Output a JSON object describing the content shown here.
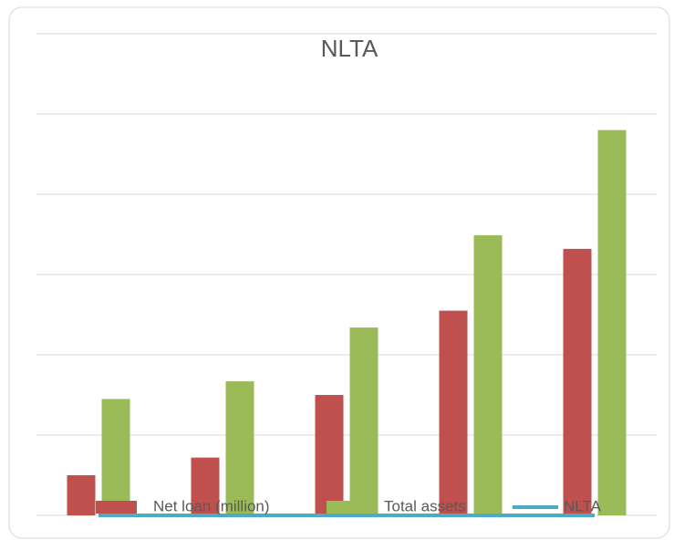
{
  "chart_data": {
    "type": "bar",
    "title": "NLTA",
    "categories": [
      null,
      null,
      null,
      null,
      null
    ],
    "series": [
      {
        "name": "Net loan (million)",
        "color": "#c0504d",
        "values": [
          0.5,
          0.72,
          1.5,
          2.55,
          3.32
        ]
      },
      {
        "name": "Total assets",
        "color": "#9bbb59",
        "values": [
          1.45,
          1.67,
          2.34,
          3.49,
          4.8
        ]
      },
      {
        "name": "NLTA",
        "type": "line",
        "color": "#4bacc6",
        "values": [
          0,
          0,
          0,
          0,
          0
        ]
      }
    ],
    "ylim": [
      0,
      6
    ],
    "yticks": [
      0,
      1,
      2,
      3,
      4,
      5,
      6
    ],
    "grid": true,
    "legend": "bottom"
  }
}
